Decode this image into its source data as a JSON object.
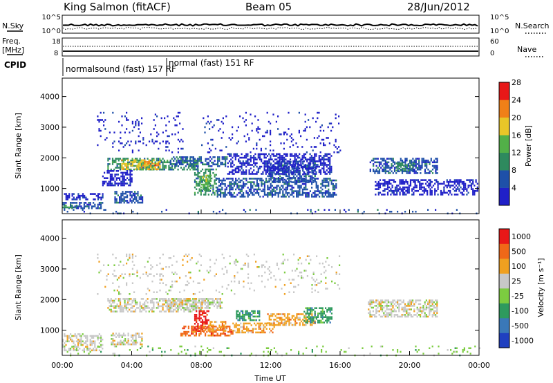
{
  "header": {
    "station": "King Salmon (fitACF)",
    "beam": "Beam 05",
    "date": "28/Jun/2012"
  },
  "noise_panel": {
    "left_label": "N.Sky",
    "right_label": "N.Search",
    "ticks": [
      "10^5",
      "10^0"
    ]
  },
  "freq_panel": {
    "left_label_1": "Freq.",
    "left_label_2": "[MHz]",
    "right_label": "Nave",
    "left_ticks": [
      "18",
      "8"
    ],
    "right_ticks": [
      "60",
      "0"
    ]
  },
  "cpid_panel": {
    "label": "CPID",
    "entries": [
      {
        "text": "normalsound (fast) 157 RF",
        "start_hour": 0
      },
      {
        "text": "normal (fast) 151 RF",
        "start_hour": 6
      }
    ]
  },
  "chart_data": [
    {
      "type": "heatmap",
      "name": "power",
      "xlabel": "Time UT",
      "ylabel": "Slant Range [km]",
      "xlim": [
        0,
        24
      ],
      "ylim": [
        180,
        4600
      ],
      "yticks": [
        1000,
        2000,
        3000,
        4000
      ],
      "colorbar": {
        "label": "Power [dB]",
        "ticks": [
          "4",
          "8",
          "12",
          "16",
          "20",
          "24",
          "28"
        ],
        "colors": [
          "#2020c8",
          "#1e50a8",
          "#2e8a5e",
          "#52b048",
          "#e8c628",
          "#f08018",
          "#e81818"
        ]
      },
      "regions": [
        {
          "t0": 0.0,
          "t1": 2.3,
          "r0": 330,
          "r1": 560,
          "level": 1
        },
        {
          "t0": 0.0,
          "t1": 0.8,
          "r0": 360,
          "r1": 470,
          "level": 2
        },
        {
          "t0": 0.1,
          "t1": 2.3,
          "r0": 620,
          "r1": 850,
          "level": 0
        },
        {
          "t0": 3.0,
          "t1": 4.6,
          "r0": 520,
          "r1": 920,
          "level": 1
        },
        {
          "t0": 2.6,
          "t1": 7.8,
          "r0": 1600,
          "r1": 2000,
          "level": 2
        },
        {
          "t0": 3.4,
          "t1": 5.6,
          "r0": 1650,
          "r1": 1950,
          "level": 4
        },
        {
          "t0": 4.7,
          "t1": 5.5,
          "r0": 1750,
          "r1": 1900,
          "level": 5
        },
        {
          "t0": 2.3,
          "t1": 4.0,
          "r0": 1100,
          "r1": 1600,
          "level": 0
        },
        {
          "t0": 6.2,
          "t1": 9.5,
          "r0": 1700,
          "r1": 2050,
          "level": 1
        },
        {
          "t0": 7.6,
          "t1": 8.9,
          "r0": 800,
          "r1": 1650,
          "level": 2
        },
        {
          "t0": 7.9,
          "t1": 8.6,
          "r0": 950,
          "r1": 1450,
          "level": 3
        },
        {
          "t0": 8.9,
          "t1": 15.8,
          "r0": 750,
          "r1": 1350,
          "level": 1
        },
        {
          "t0": 11.8,
          "t1": 14.6,
          "r0": 1200,
          "r1": 1900,
          "level": 1
        },
        {
          "t0": 9.5,
          "t1": 15.5,
          "r0": 1500,
          "r1": 2150,
          "level": 0
        },
        {
          "t0": 17.7,
          "t1": 21.6,
          "r0": 1500,
          "r1": 2000,
          "level": 1
        },
        {
          "t0": 19.2,
          "t1": 20.2,
          "r0": 1600,
          "r1": 1850,
          "level": 2
        },
        {
          "t0": 18.0,
          "t1": 23.9,
          "r0": 820,
          "r1": 1300,
          "level": 0
        },
        {
          "t0": 2.0,
          "t1": 7.0,
          "r0": 2200,
          "r1": 3500,
          "level": 0,
          "sparse": true
        },
        {
          "t0": 8.0,
          "t1": 16.0,
          "r0": 2200,
          "r1": 3500,
          "level": 0,
          "sparse": true
        },
        {
          "t0": 0.0,
          "t1": 24.0,
          "r0": 190,
          "r1": 330,
          "level": 1,
          "sparse": true
        }
      ]
    },
    {
      "type": "heatmap",
      "name": "velocity",
      "xlabel": "Time UT",
      "ylabel": "Slant Range [km]",
      "xlim": [
        0,
        24
      ],
      "ylim": [
        180,
        4600
      ],
      "yticks": [
        1000,
        2000,
        3000,
        4000
      ],
      "xticks": [
        "00:00",
        "04:00",
        "08:00",
        "12:00",
        "16:00",
        "20:00",
        "00:00"
      ],
      "colorbar": {
        "label": "Velocity [m s⁻¹]",
        "ticks": [
          "1000",
          "500",
          "100",
          "25",
          "-25",
          "-100",
          "-500",
          "-1000"
        ],
        "colors": [
          "#2040c0",
          "#3a78b8",
          "#2e9a5e",
          "#7ccc40",
          "#c8c8c8",
          "#f0a020",
          "#f06818",
          "#e81818"
        ]
      },
      "regions": [
        {
          "t0": 0.0,
          "t1": 2.3,
          "r0": 330,
          "r1": 900,
          "level": 4
        },
        {
          "t0": 2.8,
          "t1": 4.6,
          "r0": 520,
          "r1": 920,
          "level": 4
        },
        {
          "t0": 2.6,
          "t1": 8.0,
          "r0": 1600,
          "r1": 2050,
          "level": 4
        },
        {
          "t0": 6.0,
          "t1": 9.2,
          "r0": 1750,
          "r1": 2050,
          "level": 4
        },
        {
          "t0": 7.6,
          "t1": 8.4,
          "r0": 1000,
          "r1": 1650,
          "level": 7
        },
        {
          "t0": 6.8,
          "t1": 9.8,
          "r0": 800,
          "r1": 1150,
          "level": 6
        },
        {
          "t0": 8.4,
          "t1": 9.4,
          "r0": 1000,
          "r1": 1300,
          "level": 5
        },
        {
          "t0": 9.8,
          "t1": 12.2,
          "r0": 900,
          "r1": 1250,
          "level": 5
        },
        {
          "t0": 10.0,
          "t1": 11.4,
          "r0": 1300,
          "r1": 1650,
          "level": 2
        },
        {
          "t0": 11.8,
          "t1": 14.6,
          "r0": 1150,
          "r1": 1550,
          "level": 5
        },
        {
          "t0": 13.9,
          "t1": 15.5,
          "r0": 1250,
          "r1": 1750,
          "level": 2
        },
        {
          "t0": 17.6,
          "t1": 21.6,
          "r0": 1450,
          "r1": 2000,
          "level": 4
        },
        {
          "t0": 0.0,
          "t1": 24.0,
          "r0": 190,
          "r1": 500,
          "level": 3,
          "sparse": true
        },
        {
          "t0": 2.0,
          "t1": 16.0,
          "r0": 2200,
          "r1": 3500,
          "level": 4,
          "sparse": true
        }
      ]
    }
  ]
}
